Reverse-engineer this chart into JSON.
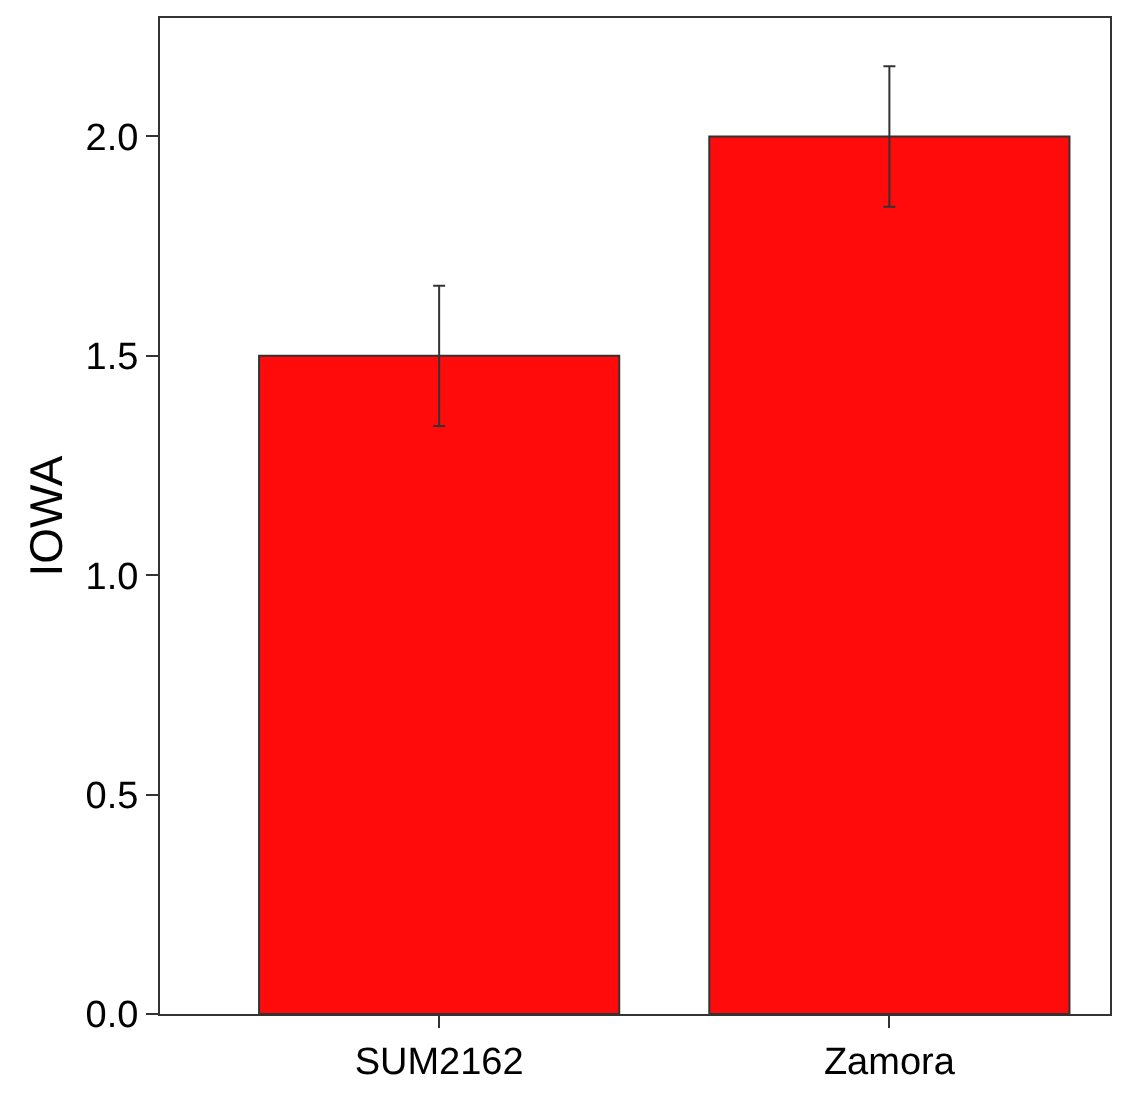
{
  "chart_data": {
    "type": "bar",
    "ylabel": "IOWA",
    "categories": [
      "SUM2162",
      "Zamora"
    ],
    "values": [
      1.5,
      2.0
    ],
    "errors": [
      0.16,
      0.16
    ],
    "color": "#ff0b0b",
    "ylim": [
      0,
      2.27
    ],
    "yticks": [
      {
        "value": 0,
        "label": "0.0"
      },
      0.5,
      {
        "value": 1,
        "label": "1.0"
      },
      1.5,
      {
        "value": 2,
        "label": "2.0"
      }
    ]
  }
}
